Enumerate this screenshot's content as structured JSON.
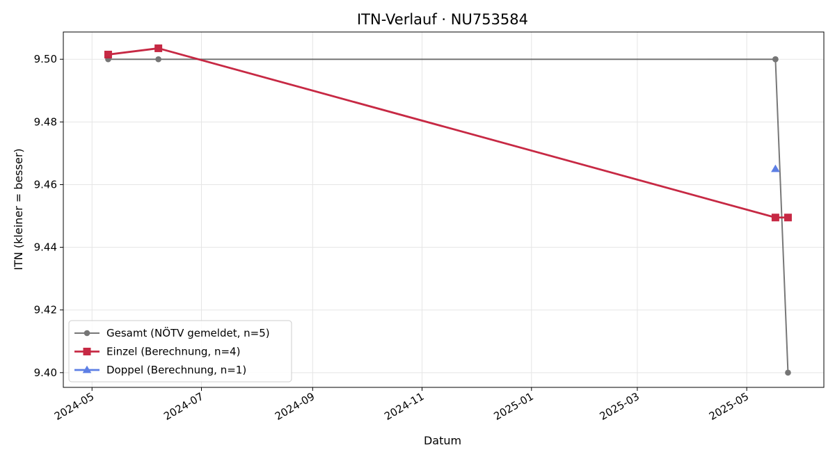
{
  "chart_data": {
    "type": "line",
    "title": "ITN-Verlauf · NU753584",
    "xlabel": "Datum",
    "ylabel": "ITN  (kleiner = besser)",
    "x_axis": {
      "type": "date",
      "range": [
        "2024-04-15",
        "2025-06-13"
      ],
      "ticks": [
        "2024-05-01",
        "2024-07-01",
        "2024-09-01",
        "2024-11-01",
        "2025-01-01",
        "2025-03-01",
        "2025-05-01"
      ],
      "tick_labels": [
        "2024-05",
        "2024-07",
        "2024-09",
        "2024-11",
        "2025-01",
        "2025-03",
        "2025-05"
      ]
    },
    "y_axis": {
      "range": [
        9.3953,
        9.5087
      ],
      "ticks": [
        9.4,
        9.42,
        9.44,
        9.46,
        9.48,
        9.5
      ],
      "tick_labels": [
        "9.40",
        "9.42",
        "9.44",
        "9.46",
        "9.48",
        "9.50"
      ]
    },
    "grid": true,
    "legend_position": "lower-left",
    "series": [
      {
        "name": "Gesamt (NÖTV gemeldet, n=5)",
        "color": "#555555",
        "marker": "circle",
        "points": [
          {
            "x": "2024-05-10",
            "y": 9.5
          },
          {
            "x": "2024-06-07",
            "y": 9.5
          },
          {
            "x": "2025-05-17",
            "y": 9.5
          },
          {
            "x": "2025-05-17",
            "y": 9.5
          },
          {
            "x": "2025-05-24",
            "y": 9.4
          }
        ]
      },
      {
        "name": "Einzel (Berechnung, n=4)",
        "color": "#c41e3a",
        "marker": "square",
        "points": [
          {
            "x": "2024-05-10",
            "y": 9.5015
          },
          {
            "x": "2024-06-07",
            "y": 9.5035
          },
          {
            "x": "2025-05-17",
            "y": 9.4495
          },
          {
            "x": "2025-05-24",
            "y": 9.4495
          }
        ]
      },
      {
        "name": "Doppel (Berechnung, n=1)",
        "color": "#4169e1",
        "marker": "triangle",
        "points": [
          {
            "x": "2025-05-17",
            "y": 9.465
          }
        ]
      }
    ]
  }
}
